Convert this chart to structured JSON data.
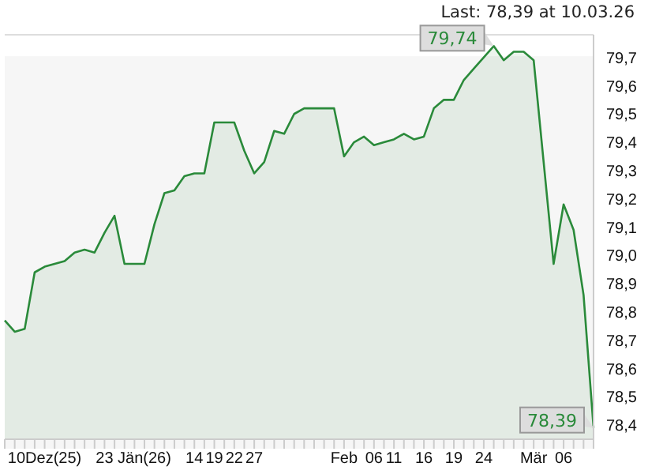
{
  "chart_data": {
    "type": "area",
    "title": "Last: 78,39 at 10.03.26",
    "categories": [
      null,
      null,
      null,
      null,
      "10Dez(25)",
      null,
      null,
      null,
      null,
      null,
      "23",
      null,
      null,
      null,
      "Jän(26)",
      null,
      null,
      null,
      null,
      "14",
      null,
      "19",
      null,
      "22",
      null,
      "27",
      null,
      null,
      null,
      null,
      null,
      null,
      null,
      null,
      "Feb",
      null,
      null,
      "06",
      null,
      "11",
      null,
      null,
      "16",
      null,
      null,
      "19",
      null,
      null,
      "24",
      null,
      null,
      null,
      null,
      "Mär",
      null,
      null,
      "06",
      null,
      null,
      null
    ],
    "series": [
      {
        "color": "#2a8a3a",
        "values": [
          78.77,
          78.73,
          78.74,
          78.94,
          78.96,
          78.97,
          78.98,
          79.01,
          79.02,
          79.01,
          79.08,
          79.14,
          78.97,
          78.97,
          78.97,
          79.11,
          79.22,
          79.23,
          79.28,
          79.29,
          79.29,
          79.47,
          79.47,
          79.47,
          79.37,
          79.29,
          79.33,
          79.44,
          79.43,
          79.5,
          79.52,
          79.52,
          79.52,
          79.52,
          79.35,
          79.4,
          79.42,
          79.39,
          79.4,
          79.41,
          79.43,
          79.41,
          79.42,
          79.52,
          79.55,
          79.55,
          79.62,
          79.66,
          79.7,
          79.74,
          79.69,
          79.72,
          79.72,
          79.69,
          79.33,
          78.97,
          79.18,
          79.09,
          78.86,
          78.39
        ]
      }
    ],
    "ylim": [
      78.35,
      79.78
    ],
    "yticks": [
      {
        "value": 78.4,
        "label": "78,4"
      },
      {
        "value": 78.5,
        "label": "78,5"
      },
      {
        "value": 78.6,
        "label": "78,6"
      },
      {
        "value": 78.7,
        "label": "78,7"
      },
      {
        "value": 78.8,
        "label": "78,8"
      },
      {
        "value": 78.9,
        "label": "78,9"
      },
      {
        "value": 79.0,
        "label": "79,0"
      },
      {
        "value": 79.1,
        "label": "79,1"
      },
      {
        "value": 79.2,
        "label": "79,2"
      },
      {
        "value": 79.3,
        "label": "79,3"
      },
      {
        "value": 79.4,
        "label": "79,4"
      },
      {
        "value": 79.5,
        "label": "79,5"
      },
      {
        "value": 79.6,
        "label": "79,6"
      },
      {
        "value": 79.7,
        "label": "79,7"
      }
    ],
    "grid": "y",
    "annotations": [
      "79,74",
      "78,39"
    ]
  }
}
